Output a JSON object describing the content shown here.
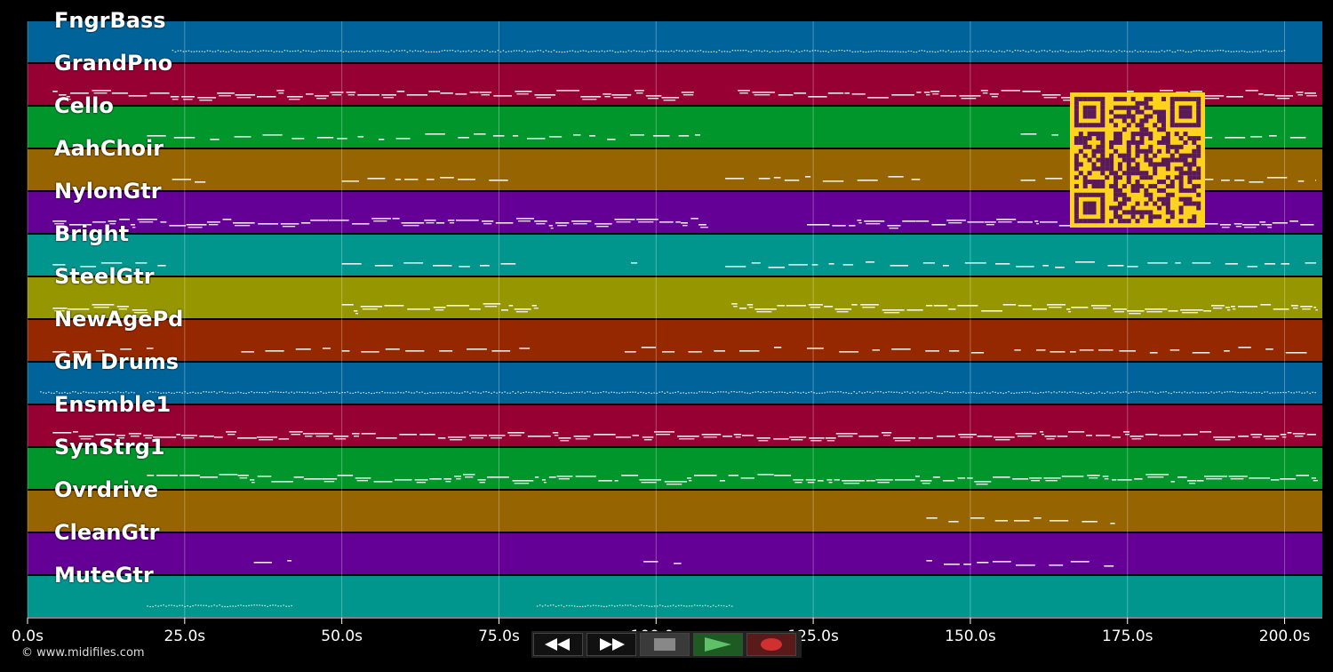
{
  "timeline": {
    "duration_s": 206,
    "tracks": [
      {
        "name": "FngrBass",
        "color": "#00649a",
        "pattern": "dots",
        "seg": [
          [
            4,
            1.5
          ],
          [
            23,
            200
          ]
        ]
      },
      {
        "name": "GrandPno",
        "color": "#960032",
        "pattern": "dense",
        "seg": [
          [
            4,
            106
          ],
          [
            113,
            205
          ]
        ]
      },
      {
        "name": "Cello",
        "color": "#00962c",
        "pattern": "sparse",
        "seg": [
          [
            19,
            108
          ],
          [
            158,
            205
          ]
        ]
      },
      {
        "name": "AahChoir",
        "color": "#966400",
        "pattern": "sparse",
        "seg": [
          [
            23,
            30
          ],
          [
            50,
            78
          ],
          [
            111,
            142
          ],
          [
            158,
            205
          ]
        ]
      },
      {
        "name": "NylonGtr",
        "color": "#640096",
        "pattern": "dense",
        "seg": [
          [
            4,
            45
          ],
          [
            45,
            108
          ],
          [
            124,
            205
          ]
        ]
      },
      {
        "name": "Bright",
        "color": "#00968e",
        "pattern": "sparse",
        "seg": [
          [
            4,
            22
          ],
          [
            50,
            80
          ],
          [
            96,
            97
          ],
          [
            111,
            205
          ]
        ]
      },
      {
        "name": "SteelGtr",
        "color": "#969600",
        "pattern": "dense",
        "seg": [
          [
            4,
            19
          ],
          [
            50,
            81
          ],
          [
            112,
            205
          ]
        ]
      },
      {
        "name": "NewAgePd",
        "color": "#962800",
        "pattern": "sparse",
        "seg": [
          [
            4,
            20
          ],
          [
            34,
            50
          ],
          [
            50,
            81
          ],
          [
            95,
            122
          ],
          [
            124,
            153
          ],
          [
            157,
            205
          ]
        ]
      },
      {
        "name": "GM Drums",
        "color": "#00649a",
        "pattern": "dots",
        "seg": [
          [
            2,
            17
          ],
          [
            19,
            205
          ]
        ]
      },
      {
        "name": "Ensmble1",
        "color": "#960032",
        "pattern": "dense",
        "seg": [
          [
            4,
            205
          ]
        ]
      },
      {
        "name": "SynStrg1",
        "color": "#00962c",
        "pattern": "dense",
        "seg": [
          [
            19,
            205
          ]
        ]
      },
      {
        "name": "Ovrdrive",
        "color": "#966400",
        "pattern": "sparse",
        "seg": [
          [
            143,
            173
          ]
        ]
      },
      {
        "name": "CleanGtr",
        "color": "#640096",
        "pattern": "sparse",
        "seg": [
          [
            36,
            42
          ],
          [
            98,
            104
          ],
          [
            143,
            173
          ]
        ]
      },
      {
        "name": "MuteGtr",
        "color": "#00968e",
        "pattern": "dots",
        "seg": [
          [
            19,
            42
          ],
          [
            81,
            112
          ]
        ]
      }
    ],
    "ticks": [
      "0.0s",
      "25.0s",
      "50.0s",
      "75.0s",
      "100.0s",
      "125.0s",
      "150.0s",
      "175.0s",
      "200.0s"
    ],
    "tick_values": [
      0,
      25,
      50,
      75,
      100,
      125,
      150,
      175,
      200
    ]
  },
  "copyright": "© www.midifiles.com",
  "controls": {
    "rewind": "rewind-icon",
    "forward": "fast-forward-icon",
    "stop": "stop-icon",
    "play": "play-icon",
    "record": "record-icon"
  }
}
